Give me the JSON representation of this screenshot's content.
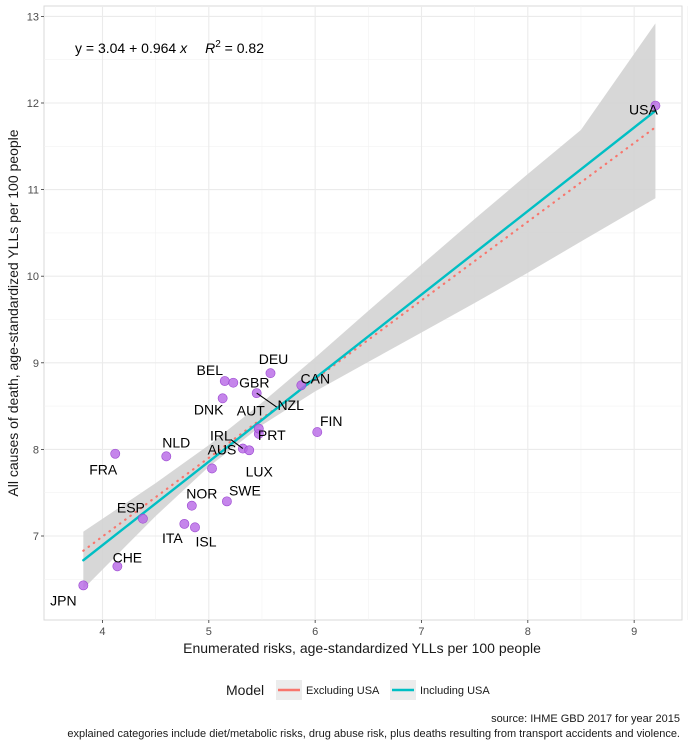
{
  "chart_data": {
    "type": "scatter",
    "xlabel": "Enumerated risks, age-standardized YLLs per 100 people",
    "ylabel": "All causes of death, age-standardized YLLs per 100 people",
    "xlim": [
      3.45,
      9.45
    ],
    "ylim": [
      6.03,
      13.12
    ],
    "x_ticks": [
      4,
      5,
      6,
      7,
      8,
      9
    ],
    "y_ticks": [
      7,
      8,
      9,
      10,
      11,
      12,
      13
    ],
    "grid": true,
    "equation": {
      "prefix": "y = 3.04 + 0.964 ",
      "x_symbol": "x",
      "r2_symbol": "R",
      "r2_exponent": "2",
      "r2_value": " = 0.82"
    },
    "points": [
      {
        "label": "USA",
        "x": 9.2,
        "y": 11.97
      },
      {
        "label": "JPN",
        "x": 3.82,
        "y": 6.43
      },
      {
        "label": "CHE",
        "x": 4.14,
        "y": 6.65
      },
      {
        "label": "FRA",
        "x": 4.12,
        "y": 7.95
      },
      {
        "label": "ESP",
        "x": 4.38,
        "y": 7.2
      },
      {
        "label": "NLD",
        "x": 4.6,
        "y": 7.92
      },
      {
        "label": "ITA",
        "x": 4.77,
        "y": 7.14
      },
      {
        "label": "ISL",
        "x": 4.87,
        "y": 7.1
      },
      {
        "label": "NOR",
        "x": 4.84,
        "y": 7.35
      },
      {
        "label": "AUS",
        "x": 5.03,
        "y": 7.78
      },
      {
        "label": "SWE",
        "x": 5.17,
        "y": 7.4
      },
      {
        "label": "IRL",
        "x": 5.32,
        "y": 8.01
      },
      {
        "label": "LUX",
        "x": 5.38,
        "y": 7.99
      },
      {
        "label": "PRT",
        "x": 5.47,
        "y": 8.18
      },
      {
        "label": "AUT",
        "x": 5.47,
        "y": 8.24
      },
      {
        "label": "DNK",
        "x": 5.13,
        "y": 8.59
      },
      {
        "label": "BEL",
        "x": 5.15,
        "y": 8.79
      },
      {
        "label": "GBR",
        "x": 5.23,
        "y": 8.77
      },
      {
        "label": "NZL",
        "x": 5.45,
        "y": 8.65
      },
      {
        "label": "DEU",
        "x": 5.58,
        "y": 8.88
      },
      {
        "label": "CAN",
        "x": 5.87,
        "y": 8.74
      },
      {
        "label": "FIN",
        "x": 6.02,
        "y": 8.2
      }
    ],
    "series": [
      {
        "name": "Excluding USA",
        "color": "#F8766D",
        "style": "dotted",
        "x": [
          3.82,
          9.2
        ],
        "y": [
          6.83,
          11.72
        ]
      },
      {
        "name": "Including USA",
        "color": "#00BFC4",
        "style": "solid",
        "x": [
          3.82,
          9.2
        ],
        "y": [
          6.72,
          11.91
        ]
      }
    ],
    "confidence_band": {
      "x": [
        3.82,
        4.5,
        5.0,
        5.5,
        6.0,
        6.5,
        7.0,
        7.5,
        8.0,
        8.5,
        9.2
      ],
      "lower": [
        6.39,
        7.23,
        7.8,
        8.28,
        8.67,
        9.01,
        9.35,
        9.69,
        10.04,
        10.4,
        10.9
      ],
      "upper": [
        7.05,
        7.61,
        8.05,
        8.54,
        9.06,
        9.6,
        10.13,
        10.66,
        11.18,
        11.69,
        12.92
      ]
    },
    "legend": {
      "title": "Model",
      "position": "bottom"
    },
    "point_color": "#B667E6",
    "band_color": "#D3D3D3"
  },
  "caption": {
    "line1": "source: IHME GBD 2017 for year 2015",
    "line2": "explained categories include diet/metabolic risks, drug abuse risk, plus deaths resulting from transport accidents and violence."
  }
}
